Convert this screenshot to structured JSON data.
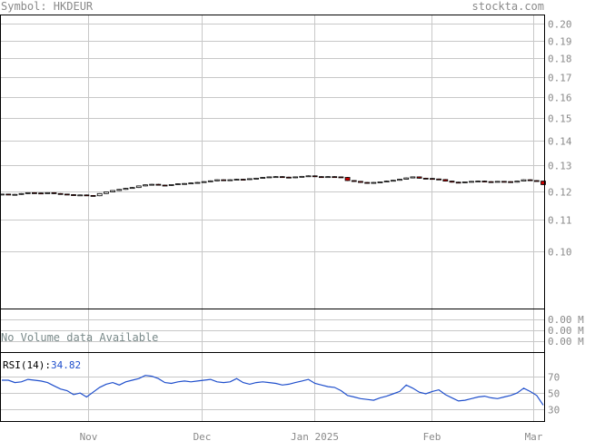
{
  "header": {
    "symbol_label": "Symbol: HKDEUR",
    "site": "stockta.com"
  },
  "colors": {
    "up_candle": "#ffffff",
    "down_candle": "#cc0000",
    "rsi_line": "#1f4fcc",
    "rsi_value": "#1f4fcc",
    "grid": "#c8c8c8",
    "text": "#8a8a8a"
  },
  "chart_data": [
    {
      "type": "candlestick",
      "title": "",
      "xlabel": "",
      "ylabel": "",
      "y_scale": "log",
      "ylim": [
        0.084,
        0.205
      ],
      "y_ticks": [
        0.2,
        0.19,
        0.18,
        0.17,
        0.16,
        0.15,
        0.14,
        0.13,
        0.12,
        0.11,
        0.1
      ],
      "y_tick_labels": [
        "0.20",
        "0.19",
        "0.18",
        "0.17",
        "0.16",
        "0.15",
        "0.14",
        "0.13",
        "0.12",
        "0.11",
        "0.10"
      ],
      "x_ticks": [
        {
          "label": "Nov",
          "date": "2024-11-01"
        },
        {
          "label": "Dec",
          "date": "2024-12-02"
        },
        {
          "label": "Jan 2025",
          "date": "2025-01-02"
        },
        {
          "label": "Feb",
          "date": "2025-02-03"
        },
        {
          "label": "Mar",
          "date": "2025-03-03"
        }
      ],
      "close": [
        0.119,
        0.1188,
        0.1189,
        0.1192,
        0.1195,
        0.1194,
        0.1193,
        0.1195,
        0.1192,
        0.119,
        0.1188,
        0.1186,
        0.1187,
        0.1185,
        0.1184,
        0.1192,
        0.1198,
        0.1203,
        0.1207,
        0.1211,
        0.1214,
        0.122,
        0.1224,
        0.1226,
        0.1223,
        0.1222,
        0.1225,
        0.1228,
        0.1229,
        0.1231,
        0.1233,
        0.1236,
        0.1239,
        0.1243,
        0.124,
        0.1243,
        0.1245,
        0.1244,
        0.1247,
        0.1249,
        0.1252,
        0.1254,
        0.1255,
        0.1253,
        0.1251,
        0.1254,
        0.1256,
        0.1258,
        0.1255,
        0.1253,
        0.1255,
        0.1254,
        0.1252,
        0.124,
        0.1237,
        0.1233,
        0.123,
        0.1233,
        0.1235,
        0.1238,
        0.1241,
        0.1245,
        0.125,
        0.1254,
        0.1249,
        0.1248,
        0.1246,
        0.1244,
        0.1238,
        0.1234,
        0.1232,
        0.1235,
        0.1237,
        0.1238,
        0.1236,
        0.1235,
        0.1237,
        0.1236,
        0.1234,
        0.1238,
        0.1243,
        0.124,
        0.1238,
        0.1225
      ]
    },
    {
      "type": "bar",
      "note_label": "No Volume data Available",
      "y_tick_labels": [
        "0.00 M",
        "0.00 M",
        "0.00 M"
      ]
    },
    {
      "type": "line",
      "indicator_label": "RSI(14):",
      "indicator_value": "34.82",
      "ylim": [
        15,
        100
      ],
      "y_ticks": [
        70,
        50,
        30
      ],
      "y_tick_labels": [
        "70",
        "50",
        "30"
      ],
      "values": [
        66,
        66,
        63,
        64,
        67,
        66,
        65,
        63,
        59,
        55,
        53,
        48,
        50,
        45,
        51,
        57,
        61,
        63,
        60,
        64,
        66,
        68,
        72,
        71,
        68,
        63,
        62,
        64,
        65,
        64,
        65,
        66,
        67,
        64,
        63,
        64,
        68,
        63,
        61,
        63,
        64,
        63,
        62,
        60,
        61,
        63,
        65,
        67,
        62,
        60,
        58,
        57,
        53,
        47,
        45,
        43,
        42,
        41,
        44,
        46,
        49,
        52,
        60,
        56,
        51,
        49,
        52,
        54,
        48,
        44,
        40,
        41,
        43,
        45,
        46,
        44,
        43,
        45,
        47,
        50,
        56,
        52,
        47,
        35
      ]
    }
  ]
}
